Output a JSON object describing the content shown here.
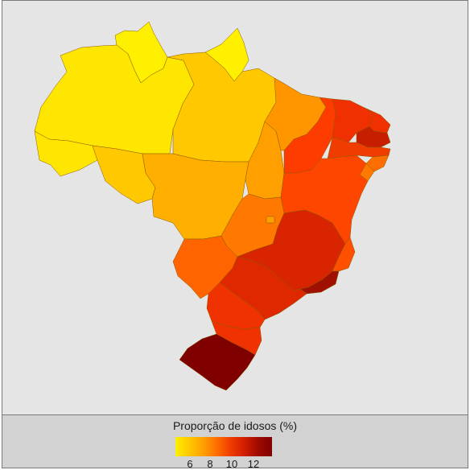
{
  "map": {
    "legend_title": "Proporção de idosos (%)",
    "legend_ticks": [
      "6",
      "8",
      "10",
      "12"
    ],
    "color_scale": [
      "#FFF000",
      "#FFC800",
      "#FFA000",
      "#FF6E00",
      "#F03C00",
      "#D01E00",
      "#A00A00",
      "#800000"
    ],
    "regions": [
      {
        "id": "RR",
        "color": "#FFF000"
      },
      {
        "id": "AP",
        "color": "#FFF000"
      },
      {
        "id": "AM",
        "color": "#FFE600"
      },
      {
        "id": "AC",
        "color": "#FFE600"
      },
      {
        "id": "RO",
        "color": "#FFC800"
      },
      {
        "id": "PA",
        "color": "#FFC800"
      },
      {
        "id": "MT",
        "color": "#FFAF00"
      },
      {
        "id": "TO",
        "color": "#FFA000"
      },
      {
        "id": "MA",
        "color": "#FF9600"
      },
      {
        "id": "PI",
        "color": "#FF3C00"
      },
      {
        "id": "CE",
        "color": "#F03000"
      },
      {
        "id": "RN",
        "color": "#F03000"
      },
      {
        "id": "PB",
        "color": "#C81E00"
      },
      {
        "id": "PE",
        "color": "#F03C00"
      },
      {
        "id": "AL",
        "color": "#FF6E00"
      },
      {
        "id": "SE",
        "color": "#FF7800"
      },
      {
        "id": "BA",
        "color": "#FF4600"
      },
      {
        "id": "GO",
        "color": "#FF7800"
      },
      {
        "id": "DF",
        "color": "#FFA000"
      },
      {
        "id": "MS",
        "color": "#FF6400"
      },
      {
        "id": "MG",
        "color": "#D82400"
      },
      {
        "id": "ES",
        "color": "#FF5000"
      },
      {
        "id": "RJ",
        "color": "#A01000"
      },
      {
        "id": "SP",
        "color": "#E02800"
      },
      {
        "id": "PR",
        "color": "#F03200"
      },
      {
        "id": "SC",
        "color": "#F03200"
      },
      {
        "id": "RS",
        "color": "#800000"
      }
    ]
  }
}
